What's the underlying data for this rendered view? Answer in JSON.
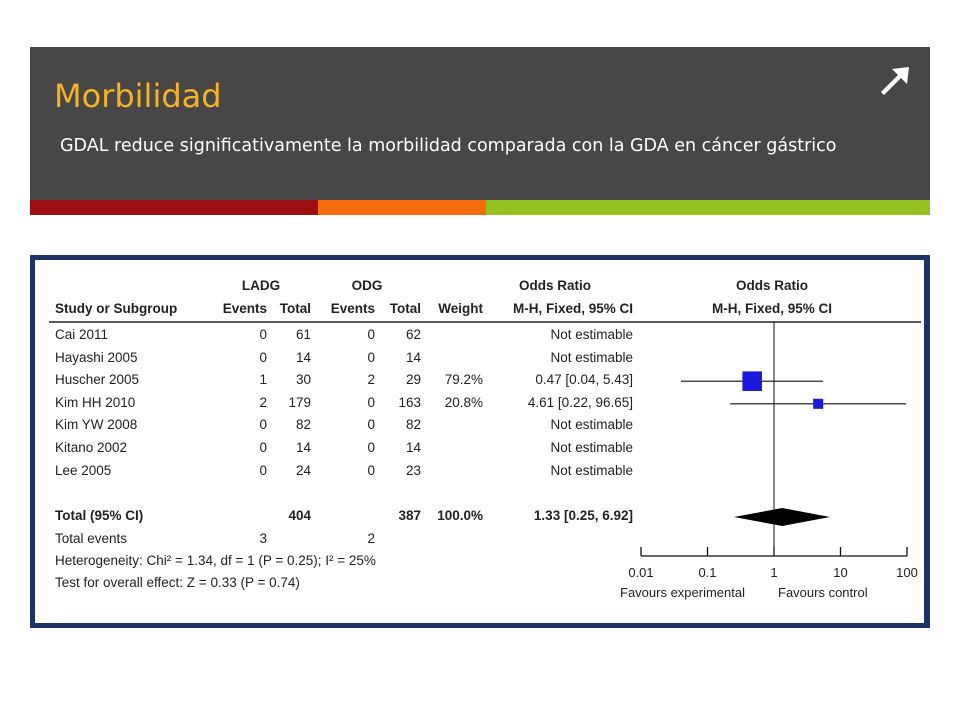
{
  "slide": {
    "title": "Morbilidad",
    "subtitle": "GDAL reduce significativamente la morbilidad comparada con la GDA en cáncer gástrico",
    "icon": "arrow-up-right-icon",
    "stripe_colors": [
      "#9c0f10",
      "#f56b0d",
      "#94c11f"
    ],
    "accent": "#f6b31f"
  },
  "chart_data": {
    "type": "forest",
    "group_headers": {
      "exp": "LADG",
      "ctrl": "ODG",
      "or_text": "Odds Ratio",
      "or_plot": "Odds Ratio"
    },
    "columns": {
      "study": "Study or Subgroup",
      "exp_events": "Events",
      "exp_total": "Total",
      "ctrl_events": "Events",
      "ctrl_total": "Total",
      "weight": "Weight",
      "or_text": "M-H, Fixed, 95% CI",
      "or_plot": "M-H, Fixed, 95% CI"
    },
    "studies": [
      {
        "name": "Cai 2011",
        "exp_events": "0",
        "exp_total": "61",
        "ctrl_events": "0",
        "ctrl_total": "62",
        "weight": "",
        "or_text": "Not estimable",
        "or": null,
        "lo": null,
        "hi": null,
        "w": 0
      },
      {
        "name": "Hayashi 2005",
        "exp_events": "0",
        "exp_total": "14",
        "ctrl_events": "0",
        "ctrl_total": "14",
        "weight": "",
        "or_text": "Not estimable",
        "or": null,
        "lo": null,
        "hi": null,
        "w": 0
      },
      {
        "name": "Huscher 2005",
        "exp_events": "1",
        "exp_total": "30",
        "ctrl_events": "2",
        "ctrl_total": "29",
        "weight": "79.2%",
        "or_text": "0.47 [0.04, 5.43]",
        "or": 0.47,
        "lo": 0.04,
        "hi": 5.43,
        "w": 79.2
      },
      {
        "name": "Kim HH 2010",
        "exp_events": "2",
        "exp_total": "179",
        "ctrl_events": "0",
        "ctrl_total": "163",
        "weight": "20.8%",
        "or_text": "4.61 [0.22, 96.65]",
        "or": 4.61,
        "lo": 0.22,
        "hi": 96.65,
        "w": 20.8
      },
      {
        "name": "Kim YW 2008",
        "exp_events": "0",
        "exp_total": "82",
        "ctrl_events": "0",
        "ctrl_total": "82",
        "weight": "",
        "or_text": "Not estimable",
        "or": null,
        "lo": null,
        "hi": null,
        "w": 0
      },
      {
        "name": "Kitano 2002",
        "exp_events": "0",
        "exp_total": "14",
        "ctrl_events": "0",
        "ctrl_total": "14",
        "weight": "",
        "or_text": "Not estimable",
        "or": null,
        "lo": null,
        "hi": null,
        "w": 0
      },
      {
        "name": "Lee 2005",
        "exp_events": "0",
        "exp_total": "24",
        "ctrl_events": "0",
        "ctrl_total": "23",
        "weight": "",
        "or_text": "Not estimable",
        "or": null,
        "lo": null,
        "hi": null,
        "w": 0
      }
    ],
    "total": {
      "label": "Total (95% CI)",
      "exp_total": "404",
      "ctrl_total": "387",
      "weight": "100.0%",
      "or_text": "1.33 [0.25, 6.92]",
      "or": 1.33,
      "lo": 0.25,
      "hi": 6.92
    },
    "total_events": {
      "label": "Total events",
      "exp": "3",
      "ctrl": "2"
    },
    "heterogeneity": "Heterogeneity: Chi² = 1.34, df = 1 (P = 0.25); I² = 25%",
    "overall_effect": "Test for overall effect: Z = 0.33 (P = 0.74)",
    "x_scale": "log",
    "xlim": [
      0.01,
      100
    ],
    "ticks": [
      {
        "v": 0.01,
        "label": "0.01"
      },
      {
        "v": 0.1,
        "label": "0.1"
      },
      {
        "v": 1,
        "label": "1"
      },
      {
        "v": 10,
        "label": "10"
      },
      {
        "v": 100,
        "label": "100"
      }
    ],
    "favours_left": "Favours experimental",
    "favours_right": "Favours control",
    "marker_color": "#1a1adc"
  }
}
